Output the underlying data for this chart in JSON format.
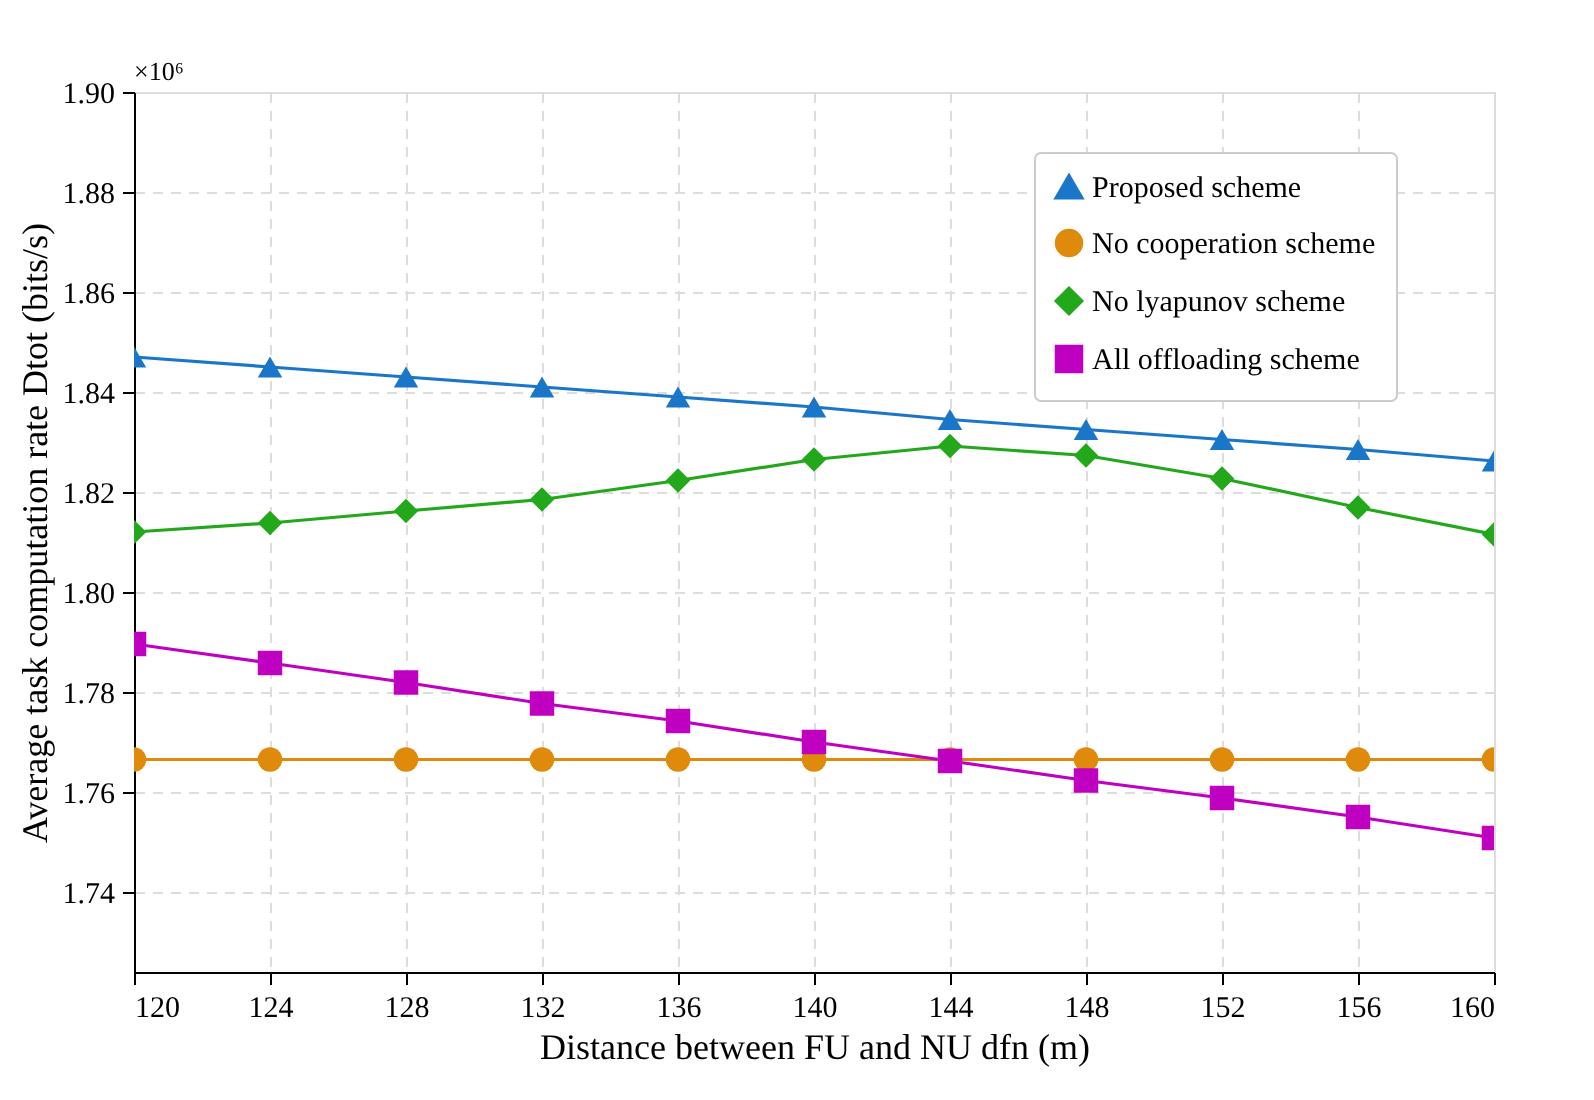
{
  "chart_data": {
    "type": "line",
    "xlabel": "Distance between FU and NU dfn (m)",
    "ylabel": "Average task computation rate Dtot (bits/s)",
    "annotations": [
      "×10⁶"
    ],
    "x": [
      120,
      124,
      128,
      132,
      136,
      140,
      144,
      148,
      152,
      156,
      160
    ],
    "series": [
      {
        "name": "Proposed scheme",
        "color": "#1a76c9",
        "marker": "triangle",
        "values": [
          1.847,
          1.845,
          1.843,
          1.841,
          1.839,
          1.837,
          1.8345,
          1.8325,
          1.8305,
          1.8285,
          1.8262
        ]
      },
      {
        "name": "No cooperation scheme",
        "color": "#e08a0b",
        "marker": "circle",
        "values": [
          1.7665,
          1.7665,
          1.7665,
          1.7665,
          1.7665,
          1.7665,
          1.7665,
          1.7665,
          1.7665,
          1.7665,
          1.7665
        ]
      },
      {
        "name": "No lyapunov scheme",
        "color": "#22a81a",
        "marker": "diamond",
        "values": [
          1.812,
          1.8138,
          1.8162,
          1.8185,
          1.8223,
          1.8265,
          1.8292,
          1.8273,
          1.8227,
          1.8169,
          1.8115
        ]
      },
      {
        "name": "All offloading scheme",
        "color": "#c000c0",
        "marker": "square",
        "values": [
          1.7896,
          1.7858,
          1.7819,
          1.7777,
          1.7742,
          1.77,
          1.7662,
          1.7623,
          1.7588,
          1.755,
          1.7508
        ]
      }
    ],
    "xlim": [
      120,
      160
    ],
    "xticks": [
      120,
      124,
      128,
      132,
      136,
      140,
      144,
      148,
      152,
      156,
      160
    ],
    "ylim": [
      1.724,
      1.9
    ],
    "yticks": [
      1.74,
      1.76,
      1.78,
      {
        "value": 1.8,
        "label": "1.80"
      },
      1.82,
      1.84,
      1.86,
      1.88,
      {
        "value": 1.9,
        "label": "1.90"
      }
    ],
    "grid": true,
    "legend": "top right",
    "line_style": "solid"
  }
}
